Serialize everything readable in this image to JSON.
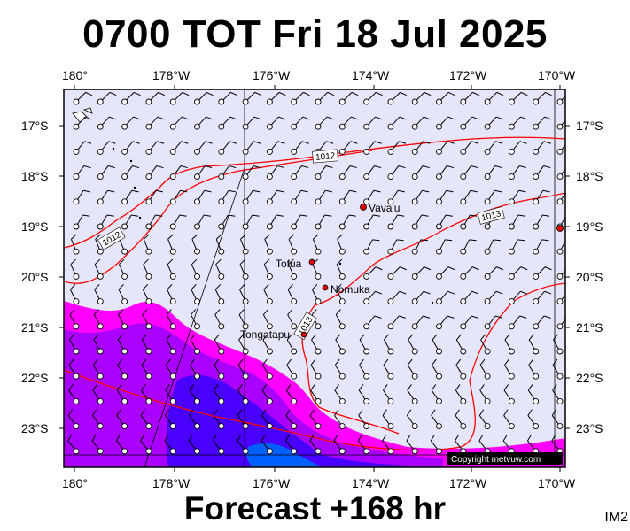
{
  "header": {
    "title": "0700 TOT Fri 18 Jul 2025"
  },
  "footer": {
    "forecast": "Forecast +168 hr",
    "tag": "IM2"
  },
  "map": {
    "lon_labels": [
      "180°",
      "178°W",
      "176°W",
      "174°W",
      "172°W",
      "170°W"
    ],
    "lat_labels": [
      "17°S",
      "18°S",
      "19°S",
      "20°S",
      "21°S",
      "22°S",
      "23°S"
    ],
    "places": [
      {
        "name": "Vava'u",
        "marker": "red-dot"
      },
      {
        "name": "Tofua",
        "marker": "red-dot"
      },
      {
        "name": "Nomuka",
        "marker": "red-dot"
      },
      {
        "name": "Tongatapu",
        "marker": "red-dot"
      }
    ],
    "isobars": [
      {
        "label": "1012"
      },
      {
        "label": "1012"
      },
      {
        "label": "1013"
      },
      {
        "label": "1013"
      }
    ],
    "copyright": "Copyright metvuw.com",
    "colors": {
      "sea": "#e6e6fa",
      "isobar": "#ff0000",
      "rain_light": "#ff00ff",
      "rain_medium": "#aa00ff",
      "rain_heavy": "#4a00ff",
      "rain_extreme": "#0060ff",
      "barb": "#000000"
    }
  }
}
